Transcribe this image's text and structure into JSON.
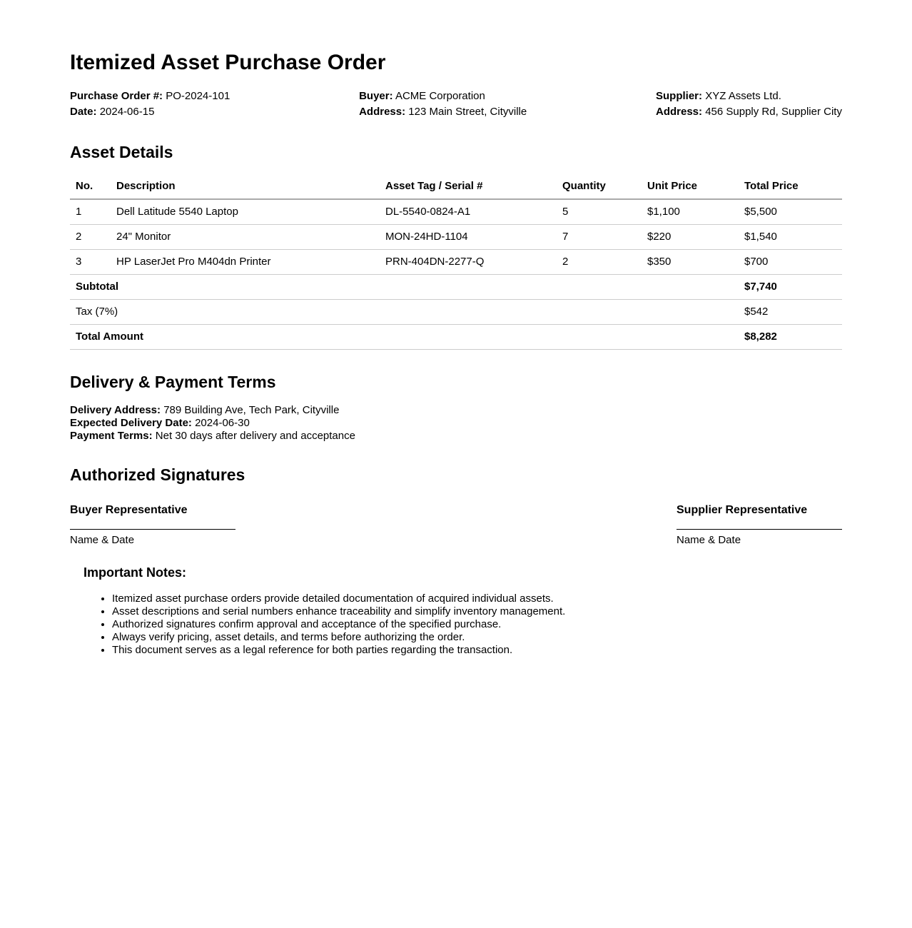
{
  "doc": {
    "title": "Itemized Asset Purchase Order"
  },
  "meta": {
    "po": {
      "label": "Purchase Order #:",
      "value": "PO-2024-101"
    },
    "date": {
      "label": "Date:",
      "value": "2024-06-15"
    },
    "buyer": {
      "label": "Buyer:",
      "value": "ACME Corporation"
    },
    "buyer_address": {
      "label": "Address:",
      "value": "123 Main Street, Cityville"
    },
    "supplier": {
      "label": "Supplier:",
      "value": "XYZ Assets Ltd."
    },
    "supplier_address": {
      "label": "Address:",
      "value": "456 Supply Rd, Supplier City"
    }
  },
  "asset_details": {
    "heading": "Asset Details",
    "columns": {
      "no": "No.",
      "description": "Description",
      "serial": "Asset Tag / Serial #",
      "quantity": "Quantity",
      "unit_price": "Unit Price",
      "total_price": "Total Price"
    },
    "rows": [
      {
        "no": "1",
        "description": "Dell Latitude 5540 Laptop",
        "serial": "DL-5540-0824-A1",
        "quantity": "5",
        "unit_price": "$1,100",
        "total_price": "$5,500"
      },
      {
        "no": "2",
        "description": "24\" Monitor",
        "serial": "MON-24HD-1104",
        "quantity": "7",
        "unit_price": "$220",
        "total_price": "$1,540"
      },
      {
        "no": "3",
        "description": "HP LaserJet Pro M404dn Printer",
        "serial": "PRN-404DN-2277-Q",
        "quantity": "2",
        "unit_price": "$350",
        "total_price": "$700"
      }
    ],
    "summary": [
      {
        "label": "Subtotal",
        "value": "$7,740"
      },
      {
        "label": "Tax (7%)",
        "value": "$542"
      },
      {
        "label": "Total Amount",
        "value": "$8,282"
      }
    ]
  },
  "terms": {
    "heading": "Delivery & Payment Terms",
    "delivery_address": {
      "label": "Delivery Address:",
      "value": "789 Building Ave, Tech Park, Cityville"
    },
    "expected_delivery_date": {
      "label": "Expected Delivery Date:",
      "value": "2024-06-30"
    },
    "payment_terms": {
      "label": "Payment Terms:",
      "value": "Net 30 days after delivery and acceptance"
    }
  },
  "signatures": {
    "heading": "Authorized Signatures",
    "buyer": {
      "title": "Buyer Representative",
      "caption": "Name & Date"
    },
    "supplier": {
      "title": "Supplier Representative",
      "caption": "Name & Date"
    }
  },
  "notes": {
    "heading": "Important Notes:",
    "items": [
      "Itemized asset purchase orders provide detailed documentation of acquired individual assets.",
      "Asset descriptions and serial numbers enhance traceability and simplify inventory management.",
      "Authorized signatures confirm approval and acceptance of the specified purchase.",
      "Always verify pricing, asset details, and terms before authorizing the order.",
      "This document serves as a legal reference for both parties regarding the transaction."
    ]
  },
  "colors": {
    "text": "#000000",
    "table_header_border": "#aaaaaa",
    "table_row_border": "#cccccc",
    "background": "#ffffff"
  }
}
